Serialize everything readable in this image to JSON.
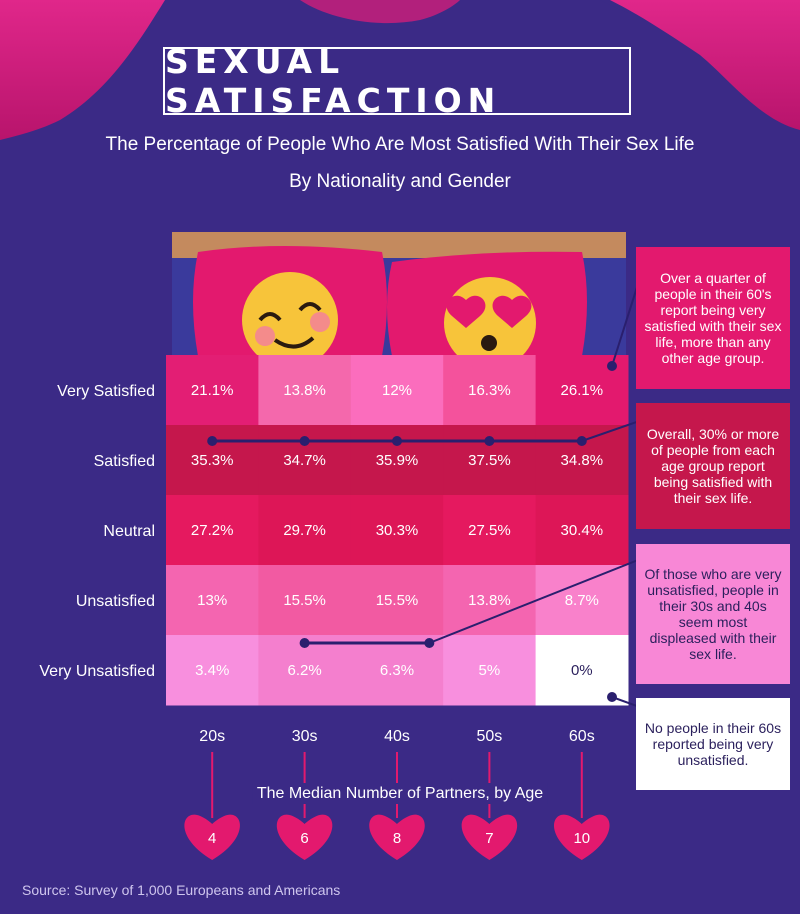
{
  "header": {
    "title": "SEXUAL SATISFACTION",
    "subtitle_line1": "The Percentage of People Who Are Most Satisfied With Their Sex Life",
    "subtitle_line2": "By Nationality and Gender"
  },
  "chart_data": {
    "type": "heatmap",
    "categories": [
      "20s",
      "30s",
      "40s",
      "50s",
      "60s"
    ],
    "rows": [
      "Very Satisfied",
      "Satisfied",
      "Neutral",
      "Unsatisfied",
      "Very Unsatisfied"
    ],
    "values": [
      [
        21.1,
        13.8,
        12,
        16.3,
        26.1
      ],
      [
        35.3,
        34.7,
        35.9,
        37.5,
        34.8
      ],
      [
        27.2,
        29.7,
        30.3,
        27.5,
        30.4
      ],
      [
        13,
        15.5,
        15.5,
        13.8,
        8.7
      ],
      [
        3.4,
        6.2,
        6.3,
        5,
        0
      ]
    ],
    "value_labels": [
      [
        "21.1%",
        "13.8%",
        "12%",
        "16.3%",
        "26.1%"
      ],
      [
        "35.3%",
        "34.7%",
        "35.9%",
        "37.5%",
        "34.8%"
      ],
      [
        "27.2%",
        "29.7%",
        "30.3%",
        "27.5%",
        "30.4%"
      ],
      [
        "13%",
        "15.5%",
        "15.5%",
        "13.8%",
        "8.7%"
      ],
      [
        "3.4%",
        "6.2%",
        "6.3%",
        "5%",
        "0%"
      ]
    ],
    "median_partners_label": "The Median Number of Partners, by Age",
    "median_partners": [
      4,
      6,
      8,
      7,
      10
    ],
    "colors": {
      "cells": [
        [
          "#e31e74",
          "#f468ac",
          "#fb6dbd",
          "#f4529c",
          "#e3196e"
        ],
        [
          "#c5174c",
          "#c5174c",
          "#c5174c",
          "#c5174c",
          "#c5174c"
        ],
        [
          "#e5195f",
          "#dd1657",
          "#dd1657",
          "#e5195f",
          "#dd1657"
        ],
        [
          "#f465b0",
          "#f25aa2",
          "#f25aa2",
          "#f465b0",
          "#f981cb"
        ],
        [
          "#f88fde",
          "#f47fce",
          "#f47fce",
          "#f88fde",
          "#ffffff"
        ]
      ],
      "heart": "#e3196e",
      "background": "#3b2a86"
    }
  },
  "callouts": [
    {
      "text": "Over a quarter of people in their 60's report being very satisfied with their sex life, more than any other age group.",
      "color": "#e3196e",
      "text_color": "#ffffff"
    },
    {
      "text": "Overall, 30% or more of people from each age group report being satisfied with their sex life.",
      "color": "#c5174c",
      "text_color": "#ffffff"
    },
    {
      "text": "Of those who are very unsatisfied, people in their 30s and 40s seem most displeased with their sex life.",
      "color": "#f887d6",
      "text_color": "#2a1f5c"
    },
    {
      "text": "No people in their 60s reported being very unsatisfied.",
      "color": "#ffffff",
      "text_color": "#2a1f5c"
    }
  ],
  "footer": {
    "source": "Source: Survey of 1,000 Europeans and Americans"
  }
}
